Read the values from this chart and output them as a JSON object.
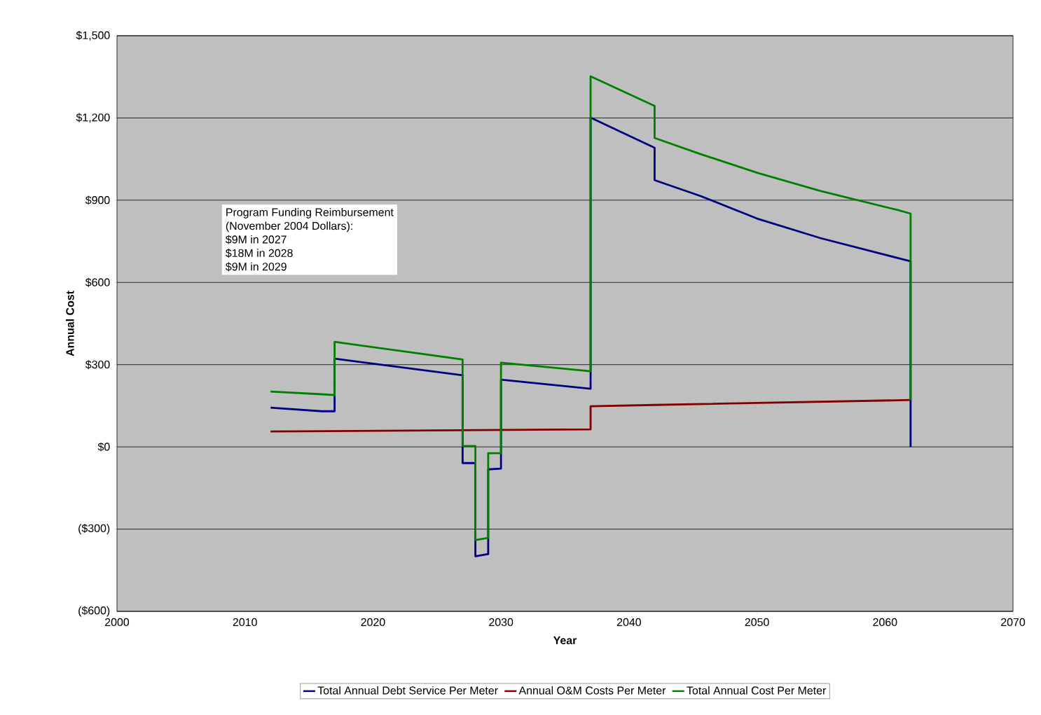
{
  "chart_data": {
    "type": "line",
    "xlabel": "Year",
    "ylabel": "Annual Cost",
    "xlim": [
      2000,
      2070
    ],
    "xticks": [
      2000,
      2010,
      2020,
      2030,
      2040,
      2050,
      2060,
      2070
    ],
    "ylim": [
      -600,
      1500
    ],
    "yticks": [
      {
        "value": -600,
        "label": "($600)"
      },
      {
        "value": -300,
        "label": "($300)"
      },
      {
        "value": 0,
        "label": "$0"
      },
      {
        "value": 300,
        "label": "$300"
      },
      {
        "value": 600,
        "label": "$600"
      },
      {
        "value": 900,
        "label": "$900"
      },
      {
        "value": 1200,
        "label": "$1,200"
      },
      {
        "value": 1500,
        "label": "$1,500"
      }
    ],
    "grid": "y",
    "legend": "bottom",
    "marker": "none",
    "line_style": "solid",
    "annotations": [
      "Program Funding Reimbursement",
      "(November 2004 Dollars):",
      "$9M in 2027",
      "$18M in 2028",
      "$9M in 2029"
    ],
    "series": [
      {
        "name": "Total Annual Debt Service Per Meter",
        "color": "#000080",
        "x": [
          2012,
          2016,
          2017,
          2017,
          2027,
          2027,
          2028,
          2028,
          2029,
          2029,
          2030,
          2030,
          2037,
          2037,
          2042,
          2042,
          2045.6,
          2050,
          2055,
          2062,
          2062
        ],
        "values": [
          143,
          130,
          130,
          322,
          261,
          -59,
          -59,
          -399,
          -391,
          -82,
          -79,
          245,
          212,
          1201,
          1091,
          973,
          915,
          833,
          761,
          677,
          0
        ]
      },
      {
        "name": "Annual O&M Costs Per Meter",
        "color": "#800000",
        "x": [
          2012,
          2037,
          2037,
          2042,
          2062
        ],
        "values": [
          56,
          64,
          148,
          153,
          171
        ]
      },
      {
        "name": "Total Annual Cost Per Meter",
        "color": "#008000",
        "x": [
          2012,
          2016,
          2017,
          2017,
          2027,
          2027,
          2028,
          2028,
          2029,
          2029,
          2030,
          2030,
          2037,
          2037,
          2042,
          2042,
          2045.6,
          2050,
          2055,
          2061,
          2062,
          2062
        ],
        "values": [
          202,
          192,
          189,
          383,
          319,
          3,
          3,
          -340,
          -332,
          -23,
          -23,
          307,
          276,
          1352,
          1244,
          1127,
          1068,
          1000,
          933,
          864,
          851,
          171
        ]
      }
    ]
  }
}
